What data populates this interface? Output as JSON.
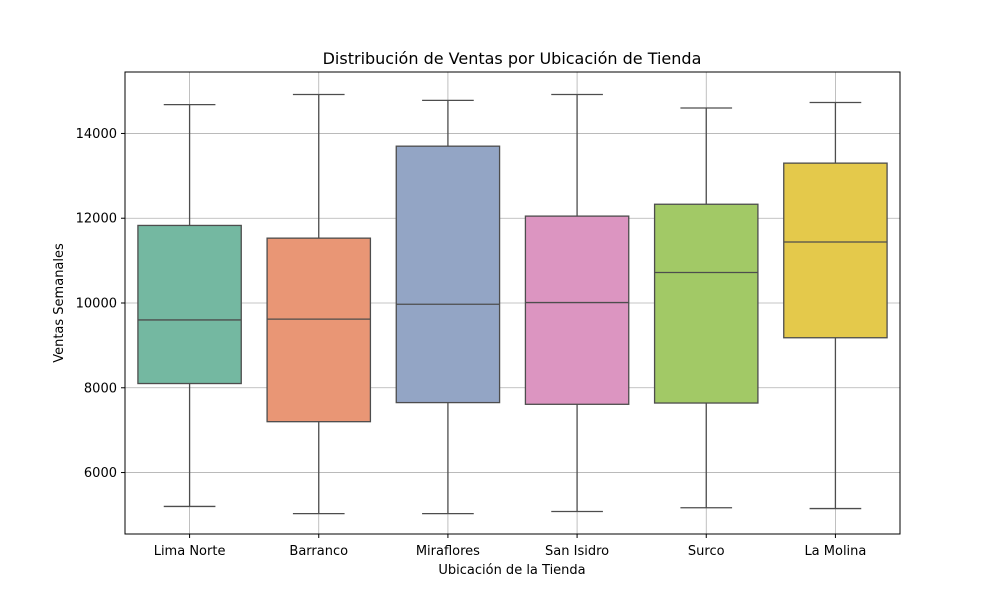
{
  "chart_data": {
    "type": "box",
    "title": "Distribución de Ventas por Ubicación de Tienda",
    "xlabel": "Ubicación de la Tienda",
    "ylabel": "Ventas Semanales",
    "ylim": [
      4550,
      15450
    ],
    "yticks": [
      6000,
      8000,
      10000,
      12000,
      14000
    ],
    "grid": true,
    "categories": [
      "Lima Norte",
      "Barranco",
      "Miraflores",
      "San Isidro",
      "Surco",
      "La Molina"
    ],
    "colors": [
      "#74b8a1",
      "#e99675",
      "#93a5c5",
      "#dc95c1",
      "#a2c966",
      "#e4c94b"
    ],
    "boxes": [
      {
        "whisker_low": 5200,
        "q1": 8100,
        "median": 9600,
        "q3": 11830,
        "whisker_high": 14680
      },
      {
        "whisker_low": 5030,
        "q1": 7200,
        "median": 9620,
        "q3": 11530,
        "whisker_high": 14920
      },
      {
        "whisker_low": 5030,
        "q1": 7650,
        "median": 9970,
        "q3": 13700,
        "whisker_high": 14780
      },
      {
        "whisker_low": 5080,
        "q1": 7610,
        "median": 10010,
        "q3": 12050,
        "whisker_high": 14920
      },
      {
        "whisker_low": 5170,
        "q1": 7640,
        "median": 10720,
        "q3": 12330,
        "whisker_high": 14600
      },
      {
        "whisker_low": 5150,
        "q1": 9180,
        "median": 11440,
        "q3": 13300,
        "whisker_high": 14730
      }
    ]
  }
}
